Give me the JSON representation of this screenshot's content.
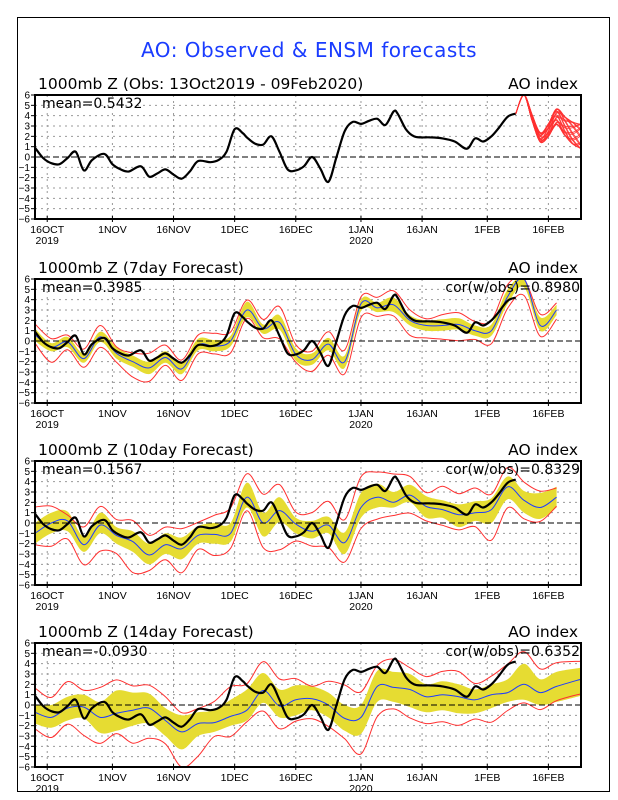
{
  "title": "AO: Observed & ENSM forecasts",
  "colors": {
    "title": "#1a3cff",
    "observed": "#000000",
    "ensemble_mean": "#1e3cff",
    "spread_fill": "#e6dc32",
    "spread_bounds": "#ff3030",
    "grid": "#999999"
  },
  "chart_data": [
    {
      "type": "line",
      "panel_title": "1000mb Z (Obs: 13Oct2019 - 09Feb2020)",
      "right_label": "AO index",
      "annotation_left": "mean=0.5432",
      "annotation_right": "",
      "ylim": [
        -6,
        6
      ],
      "yticks": [
        "6",
        "5",
        "4",
        "3",
        "2",
        "1",
        "0",
        "-1",
        "-2",
        "-3",
        "-4",
        "-5",
        "-6"
      ],
      "xticks": [
        {
          "label": "16OCT",
          "sub": "2019",
          "day": 3
        },
        {
          "label": "1NOV",
          "day": 19
        },
        {
          "label": "16NOV",
          "day": 34
        },
        {
          "label": "1DEC",
          "day": 49
        },
        {
          "label": "16DEC",
          "day": 64
        },
        {
          "label": "1JAN",
          "sub": "2020",
          "day": 80
        },
        {
          "label": "16JAN",
          "day": 95
        },
        {
          "label": "1FEB",
          "day": 111
        },
        {
          "label": "16FEB",
          "day": 126
        }
      ],
      "xlim_days": [
        0,
        134
      ],
      "x_day0": "13Oct2019",
      "grid": true,
      "observed": {
        "days": [
          0,
          2,
          4,
          6,
          8,
          10,
          12,
          14,
          17,
          19,
          21,
          23,
          26,
          28,
          30,
          32,
          34,
          36,
          38,
          40,
          43,
          45,
          47,
          49,
          51,
          52,
          54,
          56,
          58,
          60,
          62,
          64,
          66,
          68,
          70,
          72,
          74,
          76,
          78,
          80,
          82,
          84,
          86,
          88,
          89,
          91,
          93,
          95,
          97,
          100,
          103,
          106,
          108,
          110,
          112,
          114,
          116,
          118
        ],
        "values": [
          0.9,
          -0.1,
          -0.6,
          -0.7,
          -0.1,
          0.5,
          -1.3,
          -0.3,
          0.3,
          -0.7,
          -1.2,
          -1.4,
          -0.9,
          -1.9,
          -1.6,
          -1.2,
          -1.7,
          -2.1,
          -1.4,
          -0.4,
          -0.5,
          -0.3,
          0.5,
          2.7,
          2.3,
          1.9,
          1.3,
          1.2,
          2.0,
          0.5,
          -1.2,
          -1.3,
          -0.9,
          0.0,
          -1.1,
          -2.4,
          0.0,
          2.5,
          3.4,
          3.2,
          3.5,
          3.7,
          3.1,
          4.4,
          4.2,
          2.7,
          2.0,
          1.9,
          1.9,
          1.8,
          1.5,
          0.8,
          1.8,
          1.5,
          2.0,
          2.9,
          3.9,
          4.2
        ]
      },
      "ensemble_members": {
        "start_day": 118,
        "count": 20,
        "mean_values": [
          4.2,
          6.3,
          3.8,
          1.9,
          2.6,
          3.9,
          3.0,
          2.3,
          2.0
        ]
      }
    },
    {
      "type": "line",
      "panel_title": "1000mb Z (7day Forecast)",
      "right_label": "AO index",
      "annotation_left": "mean=0.3985",
      "annotation_right": "cor(w/obs)=0.8980",
      "ylim": [
        -6,
        6
      ],
      "forecast": {
        "days": [
          0,
          4,
          8,
          12,
          16,
          20,
          24,
          28,
          32,
          36,
          40,
          44,
          48,
          52,
          56,
          60,
          64,
          68,
          72,
          76,
          80,
          84,
          88,
          92,
          96,
          100,
          104,
          108,
          112,
          116,
          120,
          124,
          128
        ],
        "mean": [
          0.6,
          -0.6,
          -0.1,
          -1.7,
          0.4,
          -1.2,
          -2.0,
          -2.6,
          -1.6,
          -2.7,
          -0.4,
          -0.5,
          0.0,
          3.0,
          1.2,
          1.8,
          -1.3,
          -1.8,
          -0.3,
          -2.0,
          3.6,
          3.2,
          3.5,
          2.0,
          1.5,
          1.5,
          1.6,
          1.0,
          1.0,
          4.3,
          6.0,
          1.5,
          3.0
        ],
        "spread_lo": [
          0.0,
          -1.0,
          -0.6,
          -2.1,
          -0.1,
          -1.7,
          -2.5,
          -3.2,
          -2.1,
          -3.2,
          -0.9,
          -1.0,
          -0.5,
          2.3,
          0.7,
          1.1,
          -1.9,
          -2.3,
          -0.9,
          -2.6,
          2.9,
          2.8,
          2.8,
          1.5,
          1.0,
          1.0,
          1.1,
          0.5,
          0.5,
          3.6,
          5.2,
          1.0,
          2.5
        ],
        "spread_hi": [
          1.2,
          -0.2,
          0.4,
          -1.2,
          0.9,
          -0.6,
          -1.4,
          -2.0,
          -1.0,
          -2.1,
          0.2,
          0.1,
          0.5,
          3.8,
          1.6,
          2.5,
          -0.7,
          -1.2,
          0.3,
          -1.4,
          4.0,
          3.7,
          4.2,
          2.5,
          2.0,
          2.1,
          2.2,
          1.5,
          1.6,
          5.0,
          6.2,
          2.3,
          3.5
        ],
        "bound_lo": [
          -0.4,
          -1.8,
          -1.0,
          -2.6,
          -0.4,
          -2.3,
          -3.4,
          -3.8,
          -2.6,
          -3.6,
          -1.3,
          -1.4,
          -0.9,
          2.0,
          0.3,
          0.4,
          -2.3,
          -2.8,
          -1.3,
          -3.4,
          2.5,
          2.3,
          2.3,
          0.8,
          0.1,
          0.2,
          0.2,
          -0.1,
          -0.1,
          3.2,
          4.2,
          0.7,
          2.0
        ],
        "bound_hi": [
          1.4,
          0.3,
          0.8,
          -0.9,
          1.3,
          -0.4,
          -1.0,
          -1.4,
          -0.5,
          -1.6,
          0.6,
          0.5,
          0.9,
          4.2,
          2.0,
          3.1,
          -0.2,
          -0.8,
          0.7,
          -1.0,
          4.5,
          4.3,
          4.6,
          3.0,
          2.4,
          2.5,
          2.5,
          2.0,
          2.2,
          5.3,
          6.4,
          2.8,
          3.8
        ]
      }
    },
    {
      "type": "line",
      "panel_title": "1000mb Z (10day Forecast)",
      "right_label": "AO index",
      "annotation_left": "mean=0.1567",
      "annotation_right": "cor(w/obs)=0.8329",
      "ylim": [
        -6,
        6
      ],
      "forecast": {
        "days": [
          0,
          4,
          8,
          12,
          16,
          20,
          24,
          28,
          32,
          36,
          40,
          44,
          48,
          52,
          56,
          60,
          64,
          68,
          72,
          76,
          80,
          84,
          88,
          92,
          96,
          100,
          104,
          108,
          112,
          116,
          120,
          124,
          128
        ],
        "mean": [
          -1.0,
          0.0,
          0.2,
          -2.1,
          -0.2,
          -1.2,
          -1.8,
          -3.1,
          -2.1,
          -2.5,
          -1.2,
          -1.1,
          -1.0,
          2.5,
          0.0,
          1.2,
          -0.1,
          -0.8,
          -0.2,
          -1.9,
          1.5,
          2.5,
          2.0,
          2.7,
          1.6,
          1.3,
          0.8,
          1.0,
          1.3,
          3.5,
          2.2,
          1.5,
          2.5
        ],
        "spread_lo": [
          -2.0,
          -1.0,
          -0.8,
          -2.8,
          -1.0,
          -2.0,
          -2.8,
          -4.0,
          -3.0,
          -3.5,
          -2.0,
          -2.0,
          -1.8,
          1.5,
          -1.3,
          0.1,
          -1.0,
          -1.5,
          -1.0,
          -3.0,
          0.5,
          1.5,
          1.5,
          2.0,
          0.5,
          0.5,
          -0.4,
          0.2,
          0.0,
          2.3,
          1.0,
          0.4,
          1.5
        ],
        "spread_hi": [
          0.0,
          1.0,
          1.1,
          -1.3,
          1.0,
          -0.4,
          -0.8,
          -2.0,
          -1.0,
          -1.4,
          -0.3,
          0.0,
          0.0,
          3.9,
          1.0,
          2.5,
          0.5,
          0.2,
          0.6,
          -0.9,
          2.9,
          3.8,
          3.0,
          3.7,
          2.6,
          2.2,
          1.8,
          2.1,
          2.4,
          4.5,
          3.1,
          2.9,
          3.5
        ],
        "bound_lo": [
          -2.3,
          -2.0,
          -1.7,
          -4.1,
          -2.5,
          -3.2,
          -4.7,
          -4.5,
          -3.8,
          -4.6,
          -2.6,
          -3.3,
          -2.2,
          1.0,
          -2.4,
          -2.4,
          -2.0,
          -2.1,
          -2.3,
          -4.0,
          -0.3,
          0.3,
          0.6,
          1.2,
          0.0,
          -0.2,
          -0.5,
          -0.6,
          -1.5,
          1.5,
          0.2,
          0.4,
          1.5
        ],
        "bound_hi": [
          1.3,
          1.7,
          1.0,
          -0.5,
          1.4,
          0.5,
          0.4,
          -1.4,
          -0.5,
          -0.3,
          0.1,
          0.5,
          1.5,
          5.0,
          2.7,
          3.5,
          1.2,
          1.2,
          1.9,
          0.2,
          4.7,
          5.0,
          4.5,
          4.5,
          3.2,
          3.5,
          2.6,
          3.5,
          3.0,
          5.2,
          3.8,
          3.3,
          3.5
        ]
      }
    },
    {
      "type": "line",
      "panel_title": "1000mb Z (14day Forecast)",
      "right_label": "AO index",
      "annotation_left": "mean=-0.0930",
      "annotation_right": "cor(w/obs)=0.6352",
      "ylim": [
        -6,
        6
      ],
      "forecast": {
        "days": [
          0,
          4,
          8,
          12,
          16,
          20,
          24,
          28,
          32,
          36,
          40,
          44,
          48,
          52,
          56,
          60,
          64,
          68,
          72,
          76,
          80,
          84,
          88,
          92,
          96,
          100,
          104,
          108,
          112,
          116,
          120,
          124,
          128,
          134
        ],
        "mean": [
          -0.7,
          -1.2,
          -0.3,
          -0.2,
          -1.2,
          -0.8,
          -0.5,
          -0.3,
          -1.5,
          -2.6,
          -1.8,
          -1.7,
          -1.1,
          -0.5,
          1.4,
          -0.1,
          0.5,
          0.6,
          0.0,
          -1.3,
          -1.2,
          1.8,
          1.7,
          1.5,
          0.8,
          1.0,
          0.8,
          0.5,
          1.0,
          1.2,
          2.0,
          1.2,
          1.8,
          2.5
        ],
        "spread_lo": [
          -1.8,
          -2.2,
          -1.5,
          -1.3,
          -2.7,
          -2.5,
          -2.0,
          -1.8,
          -3.0,
          -4.3,
          -3.0,
          -2.6,
          -2.0,
          -1.5,
          0.2,
          -1.2,
          -1.0,
          -0.5,
          -1.2,
          -2.5,
          -2.8,
          0.3,
          0.3,
          -0.2,
          -0.7,
          -0.5,
          -0.8,
          -0.8,
          -0.3,
          0.3,
          0.5,
          0.0,
          0.3,
          0.9
        ],
        "spread_hi": [
          0.0,
          0.0,
          0.8,
          1.0,
          0.3,
          1.4,
          1.2,
          1.1,
          -0.3,
          -1.0,
          -0.7,
          -0.5,
          0.5,
          1.5,
          3.1,
          1.5,
          1.9,
          1.8,
          1.2,
          0.0,
          0.0,
          3.3,
          3.2,
          3.0,
          2.0,
          2.3,
          2.0,
          1.5,
          2.0,
          2.5,
          4.0,
          2.5,
          3.2,
          3.6
        ],
        "bound_lo": [
          -2.5,
          -2.9,
          -2.0,
          -3.0,
          -3.5,
          -3.0,
          -3.6,
          -3.1,
          -4.0,
          -6.0,
          -5.0,
          -3.2,
          -2.8,
          -1.8,
          -0.6,
          -2.1,
          -1.8,
          -1.2,
          -2.0,
          -3.5,
          -4.5,
          -1.2,
          -0.5,
          -1.0,
          -2.0,
          -1.6,
          -1.8,
          -1.6,
          -1.5,
          -0.5,
          0.0,
          -0.2,
          0.3,
          1.0
        ],
        "bound_hi": [
          1.4,
          0.8,
          2.5,
          1.3,
          1.5,
          2.6,
          2.0,
          1.7,
          0.7,
          -0.5,
          -0.3,
          0.1,
          1.8,
          2.3,
          4.1,
          2.3,
          2.7,
          2.0,
          2.1,
          1.8,
          1.5,
          3.9,
          4.2,
          3.6,
          3.0,
          3.2,
          3.0,
          2.2,
          3.0,
          3.8,
          5.0,
          3.7,
          4.2,
          4.0
        ]
      }
    }
  ]
}
